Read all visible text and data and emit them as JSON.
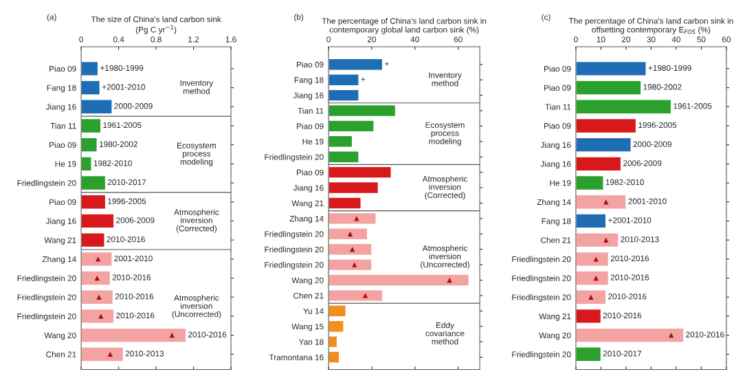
{
  "chart_data": [
    {
      "type": "bar",
      "orientation": "horizontal",
      "title": "The size of China's land carbon sink\n(Pg C yr$^{−1}$)",
      "annotations": [
        "(a)"
      ],
      "categories": [
        "Piao 09",
        "Fang 18",
        "Jiang 16",
        "Tian 11",
        "Piao 09",
        "He 19",
        "Friedlingstein 20",
        "Piao 09",
        "Jiang 16",
        "Wang 21",
        "Zhang 14",
        "Friedlingstein 20",
        "Friedlingstein 20",
        "Friedlingstein 20",
        "Wang 20",
        "Chen 21"
      ],
      "series": [
        {
          "name": "Inventory\nmethod",
          "color": "#1f6eb5",
          "values": [
            0.18,
            0.2,
            0.33,
            null,
            null,
            null,
            null,
            null,
            null,
            null,
            null,
            null,
            null,
            null,
            null,
            null
          ],
          "value_labels": [
            "+1980-1999",
            "+2001-2010",
            "2000-2009",
            null,
            null,
            null,
            null,
            null,
            null,
            null,
            null,
            null,
            null,
            null,
            null,
            null
          ]
        },
        {
          "name": "Ecosystem\nprocess\nmodeling",
          "color": "#2ca02c",
          "values": [
            null,
            null,
            null,
            0.21,
            0.17,
            0.11,
            0.26,
            null,
            null,
            null,
            null,
            null,
            null,
            null,
            null,
            null
          ],
          "value_labels": [
            null,
            null,
            null,
            "1961-2005",
            "1980-2002",
            "1982-2010",
            "2010-2017",
            null,
            null,
            null,
            null,
            null,
            null,
            null,
            null,
            null
          ]
        },
        {
          "name": "Atmospheric\ninversion\n(Corrected)",
          "color": "#d7191c",
          "values": [
            null,
            null,
            null,
            null,
            null,
            null,
            null,
            0.26,
            0.35,
            0.25,
            null,
            null,
            null,
            null,
            null,
            null
          ],
          "value_labels": [
            null,
            null,
            null,
            null,
            null,
            null,
            null,
            "1996-2005",
            "2006-2009",
            "2010-2016",
            null,
            null,
            null,
            null,
            null,
            null
          ]
        },
        {
          "name": "Atmospheric\ninversion\n(Uncorrected)",
          "color": "#f4a3a3",
          "values": [
            null,
            null,
            null,
            null,
            null,
            null,
            null,
            null,
            null,
            null,
            0.33,
            0.31,
            0.34,
            0.35,
            1.12,
            0.45
          ],
          "value_labels": [
            null,
            null,
            null,
            null,
            null,
            null,
            null,
            null,
            null,
            null,
            "2001-2010",
            "2010-2016",
            "2010-2016",
            "2010-2016",
            "2010-2016",
            "2010-2013"
          ]
        },
        {
          "type": "scatter",
          "marker": "triangle",
          "color": "#a50f15",
          "values": [
            null,
            null,
            null,
            null,
            null,
            null,
            null,
            null,
            null,
            null,
            0.18,
            0.17,
            0.19,
            0.21,
            0.97,
            0.31
          ]
        }
      ],
      "xlim": [
        0,
        1.6
      ],
      "xticks": [
        0,
        0.4,
        0.8,
        1.2,
        1.6
      ]
    },
    {
      "type": "bar",
      "orientation": "horizontal",
      "title": "The percentage of China's land carbon sink in\ncontemporary global land carbon sink (%)",
      "annotations": [
        "(b)"
      ],
      "categories": [
        "Piao 09",
        "Fang 18",
        "Jiang 16",
        "Tian 11",
        "Piao 09",
        "He 19",
        "Friedlingstein 20",
        "Piao 09",
        "Jiang 16",
        "Wang 21",
        "Zhang 14",
        "Friedlingstein 20",
        "Friedlingstein 20",
        "Friedlingstein 20",
        "Wang 20",
        "Chen 21",
        "Yu 14",
        "Wang 15",
        "Yao 18",
        "Tramontana 16"
      ],
      "series": [
        {
          "name": "Inventory\nmethod",
          "color": "#1f6eb5",
          "values": [
            25,
            14,
            14,
            null,
            null,
            null,
            null,
            null,
            null,
            null,
            null,
            null,
            null,
            null,
            null,
            null,
            null,
            null,
            null,
            null
          ],
          "value_labels": [
            "+",
            "+",
            null,
            null,
            null,
            null,
            null,
            null,
            null,
            null,
            null,
            null,
            null,
            null,
            null,
            null,
            null,
            null,
            null,
            null
          ]
        },
        {
          "name": "Ecosystem\nprocess\nmodeling",
          "color": "#2ca02c",
          "values": [
            null,
            null,
            null,
            31,
            21,
            11,
            14,
            null,
            null,
            null,
            null,
            null,
            null,
            null,
            null,
            null,
            null,
            null,
            null,
            null
          ]
        },
        {
          "name": "Atmospheric\ninversion\n(Corrected)",
          "color": "#d7191c",
          "values": [
            null,
            null,
            null,
            null,
            null,
            null,
            null,
            29,
            23,
            15,
            null,
            null,
            null,
            null,
            null,
            null,
            null,
            null,
            null,
            null
          ]
        },
        {
          "name": "Atmospheric\ninversion\n(Uncorrected)",
          "color": "#f4a3a3",
          "values": [
            null,
            null,
            null,
            null,
            null,
            null,
            null,
            null,
            null,
            null,
            22,
            18,
            20,
            20,
            65,
            25,
            null,
            null,
            null,
            null
          ]
        },
        {
          "name": "Eddy\ncovariance\nmethod",
          "color": "#f28e1c",
          "values": [
            null,
            null,
            null,
            null,
            null,
            null,
            null,
            null,
            null,
            null,
            null,
            null,
            null,
            null,
            null,
            null,
            8,
            7,
            4,
            5
          ]
        },
        {
          "type": "scatter",
          "marker": "triangle",
          "color": "#a50f15",
          "values": [
            null,
            null,
            null,
            null,
            null,
            null,
            null,
            null,
            null,
            null,
            13,
            10,
            11,
            12,
            56,
            17,
            null,
            null,
            null,
            null
          ]
        }
      ],
      "xlim": [
        0,
        70
      ],
      "xticks": [
        0,
        20,
        40,
        60
      ]
    },
    {
      "type": "bar",
      "orientation": "horizontal",
      "title": "The percentage of China's land carbon sink in\noffsetting contemporary E$_{FOS}$ (%)",
      "annotations": [
        "(c)"
      ],
      "categories": [
        "Piao 09",
        "Piao 09",
        "Tian 11",
        "Piao 09",
        "Jiang 16",
        "Jiang 16",
        "He 19",
        "Zhang 14",
        "Fang 18",
        "Chen 21",
        "Friedlingstein 20",
        "Friedlingstein 20",
        "Friedlingstein 20",
        "Wang 21",
        "Wang 20",
        "Friedlingstein 20"
      ],
      "series": [
        {
          "colors": [
            "#1f6eb5",
            "#2ca02c",
            "#2ca02c",
            "#d7191c",
            "#1f6eb5",
            "#d7191c",
            "#2ca02c",
            "#f4a3a3",
            "#1f6eb5",
            "#f4a3a3",
            "#f4a3a3",
            "#f4a3a3",
            "#f4a3a3",
            "#d7191c",
            "#f4a3a3",
            "#2ca02c"
          ],
          "values": [
            28,
            26,
            38,
            24,
            22,
            18,
            11,
            20,
            12,
            17,
            13,
            13,
            12,
            10,
            43,
            10
          ],
          "value_labels": [
            "+1980-1999",
            "1980-2002",
            "1961-2005",
            "1996-2005",
            "2000-2009",
            "2006-2009",
            "1982-2010",
            "2001-2010",
            "+2001-2010",
            "2010-2013",
            "2010-2016",
            "2010-2016",
            "2010-2016",
            "2010-2016",
            "2010-2016",
            "2010-2017"
          ]
        },
        {
          "type": "scatter",
          "marker": "triangle",
          "color": "#a50f15",
          "values": [
            null,
            null,
            null,
            null,
            null,
            null,
            null,
            12,
            null,
            12,
            8,
            8,
            6,
            null,
            38,
            null
          ]
        }
      ],
      "xlim": [
        0,
        60
      ],
      "xticks": [
        0,
        10,
        20,
        30,
        40,
        50,
        60
      ]
    }
  ]
}
